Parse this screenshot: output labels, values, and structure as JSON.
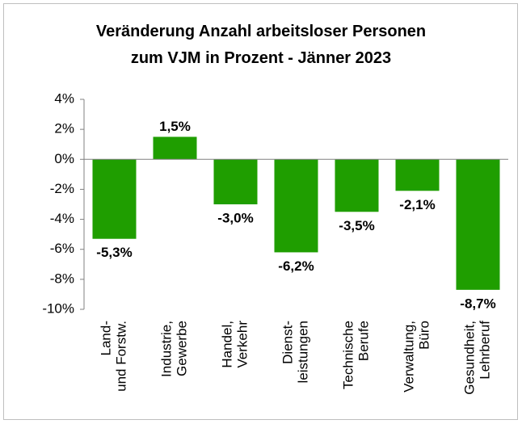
{
  "chart_data": {
    "type": "bar",
    "title": [
      "Veränderung Anzahl arbeitsloser Personen",
      "zum VJM in Prozent - Jänner 2023"
    ],
    "categories": [
      [
        "Land-",
        "und Forstw."
      ],
      [
        "Industrie,",
        "Gewerbe"
      ],
      [
        "Handel,",
        "Verkehr"
      ],
      [
        "Dienst-",
        "leistungen"
      ],
      [
        "Technische",
        "Berufe"
      ],
      [
        "Verwaltung,",
        "Büro"
      ],
      [
        "Gesundheit,",
        "Lehrberuf"
      ]
    ],
    "values": [
      -5.3,
      1.5,
      -3.0,
      -6.2,
      -3.5,
      -2.1,
      -8.7
    ],
    "value_labels": [
      "-5,3%",
      "1,5%",
      "-3,0%",
      "-6,2%",
      "-3,5%",
      "-2,1%",
      "-8,7%"
    ],
    "color": "#1f9e00",
    "ylim": [
      -10,
      4
    ],
    "yticks": [
      {
        "value": -10,
        "label": "-10%"
      },
      {
        "value": -8,
        "label": "-8%"
      },
      {
        "value": -6,
        "label": "-6%"
      },
      {
        "value": -4,
        "label": "-4%"
      },
      {
        "value": -2,
        "label": "-2%"
      },
      {
        "value": 0,
        "label": "0%"
      },
      {
        "value": 2,
        "label": "2%"
      },
      {
        "value": 4,
        "label": "4%"
      }
    ],
    "grid": false
  }
}
